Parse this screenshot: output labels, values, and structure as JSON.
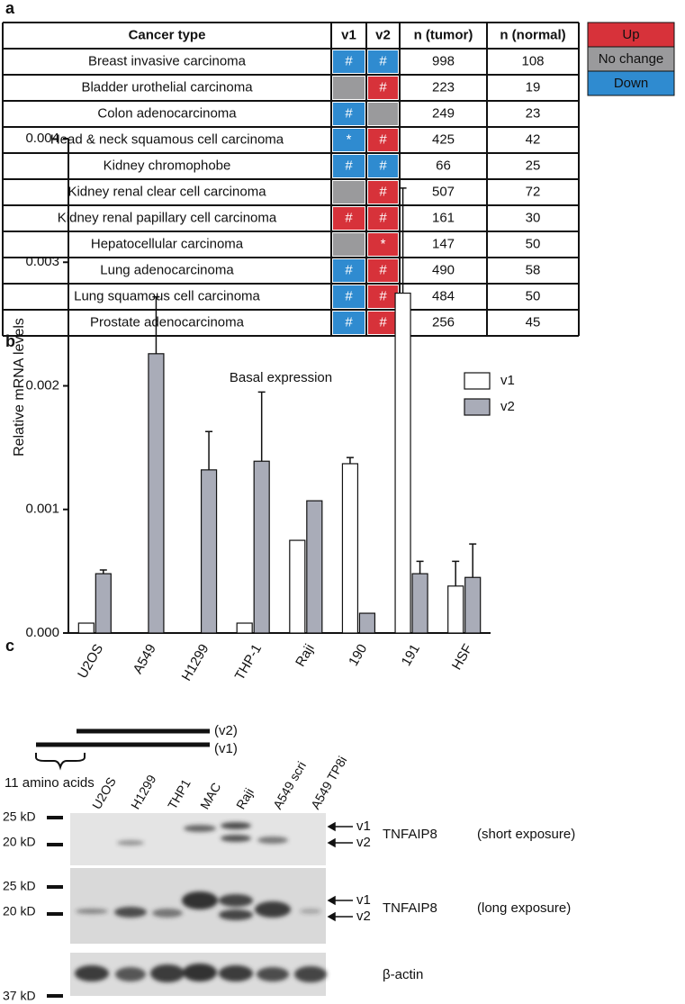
{
  "panel_labels": [
    "a",
    "b",
    "c"
  ],
  "table": {
    "header": [
      "Cancer type",
      "v1",
      "v2",
      "n (tumor)",
      "n (normal)"
    ],
    "rows": [
      {
        "name": "Breast invasive carcinoma",
        "v1": {
          "color": "#2f8bd0",
          "mark": "#"
        },
        "v2": {
          "color": "#2f8bd0",
          "mark": "#"
        },
        "tumor": 998,
        "normal": 108
      },
      {
        "name": "Bladder urothelial carcinoma",
        "v1": {
          "color": "#9a9a9c"
        },
        "v2": {
          "color": "#d7323a",
          "mark": "#"
        },
        "tumor": 223,
        "normal": 19
      },
      {
        "name": "Colon adenocarcinoma",
        "v1": {
          "color": "#2f8bd0",
          "mark": "#"
        },
        "v2": {
          "color": "#9a9a9c"
        },
        "tumor": 249,
        "normal": 23
      },
      {
        "name": "Head & neck squamous cell carcinoma",
        "v1": {
          "color": "#2f8bd0",
          "mark": "*"
        },
        "v2": {
          "color": "#d7323a",
          "mark": "#"
        },
        "tumor": 425,
        "normal": 42
      },
      {
        "name": "Kidney chromophobe",
        "v1": {
          "color": "#2f8bd0",
          "mark": "#"
        },
        "v2": {
          "color": "#2f8bd0",
          "mark": "#"
        },
        "tumor": 66,
        "normal": 25
      },
      {
        "name": "Kidney renal clear cell carcinoma",
        "v1": {
          "color": "#9a9a9c"
        },
        "v2": {
          "color": "#d7323a",
          "mark": "#"
        },
        "tumor": 507,
        "normal": 72
      },
      {
        "name": "Kidney renal papillary cell carcinoma",
        "v1": {
          "color": "#d7323a",
          "mark": "#"
        },
        "v2": {
          "color": "#d7323a",
          "mark": "#"
        },
        "tumor": 161,
        "normal": 30
      },
      {
        "name": "Hepatocellular carcinoma",
        "v1": {
          "color": "#9a9a9c"
        },
        "v2": {
          "color": "#d7323a",
          "mark": "*"
        },
        "tumor": 147,
        "normal": 50
      },
      {
        "name": "Lung adenocarcinoma",
        "v1": {
          "color": "#2f8bd0",
          "mark": "#"
        },
        "v2": {
          "color": "#d7323a",
          "mark": "#"
        },
        "tumor": 490,
        "normal": 58
      },
      {
        "name": "Lung squamous cell carcinoma",
        "v1": {
          "color": "#2f8bd0",
          "mark": "#"
        },
        "v2": {
          "color": "#d7323a",
          "mark": "#"
        },
        "tumor": 484,
        "normal": 50
      },
      {
        "name": "Prostate adenocarcinoma",
        "v1": {
          "color": "#2f8bd0",
          "mark": "#"
        },
        "v2": {
          "color": "#d7323a",
          "mark": "#"
        },
        "tumor": 256,
        "normal": 45
      }
    ]
  },
  "status_legend": [
    {
      "label": "Up",
      "color": "#d7323a"
    },
    {
      "label": "No change",
      "color": "#9a9a9c"
    },
    {
      "label": "Down",
      "color": "#2f8bd0"
    }
  ],
  "chart_data": {
    "type": "bar",
    "title": "Basal expression",
    "y_label": "Relative mRNA levels",
    "categories": [
      "U2OS",
      "A549",
      "H1299",
      "THP-1",
      "Raji",
      "190",
      "191",
      "HSF"
    ],
    "series": [
      {
        "name": "v1",
        "color": "#ffffff",
        "values": [
          8e-05,
          null,
          null,
          8e-05,
          0.00075,
          0.00137,
          0.00275,
          0.00038
        ],
        "errors": [
          null,
          null,
          null,
          null,
          null,
          5e-05,
          0.00085,
          0.0002
        ]
      },
      {
        "name": "v2",
        "color": "#a9acb8",
        "values": [
          0.00048,
          0.00226,
          0.00132,
          0.00139,
          0.00107,
          0.00016,
          0.00048,
          0.00045
        ],
        "errors": [
          3e-05,
          0.00046,
          0.00031,
          0.00056,
          null,
          null,
          0.0001,
          0.00027
        ]
      }
    ],
    "ylim": [
      0,
      0.004
    ],
    "yticks": [
      {
        "value": 0,
        "label": "0.000"
      },
      {
        "value": 0.001,
        "label": "0.001"
      },
      {
        "value": 0.002,
        "label": "0.002"
      },
      {
        "value": 0.003,
        "label": "0.003"
      },
      {
        "value": 0.004,
        "label": "0.004"
      }
    ],
    "grid": false,
    "legend": "upper right"
  },
  "panel_c": {
    "diagram": {
      "v2": "(v2)",
      "v1": "(v1)",
      "span": "11 amino acids"
    },
    "lanes": [
      "U2OS",
      "H1299",
      "THP1",
      "MAC",
      "Raji",
      "A549 scri",
      "A549 TP8i"
    ],
    "markers": [
      "25 kD",
      "20 kD",
      "25 kD",
      "20 kD",
      "37 kD"
    ],
    "blots": [
      {
        "arrows": [
          "v1",
          "v2"
        ],
        "protein": "TNFAIP8",
        "note": "(short exposure)"
      },
      {
        "arrows": [
          "v1",
          "v2"
        ],
        "protein": "TNFAIP8",
        "note": "(long exposure)"
      },
      {
        "protein": "β-actin"
      }
    ]
  }
}
